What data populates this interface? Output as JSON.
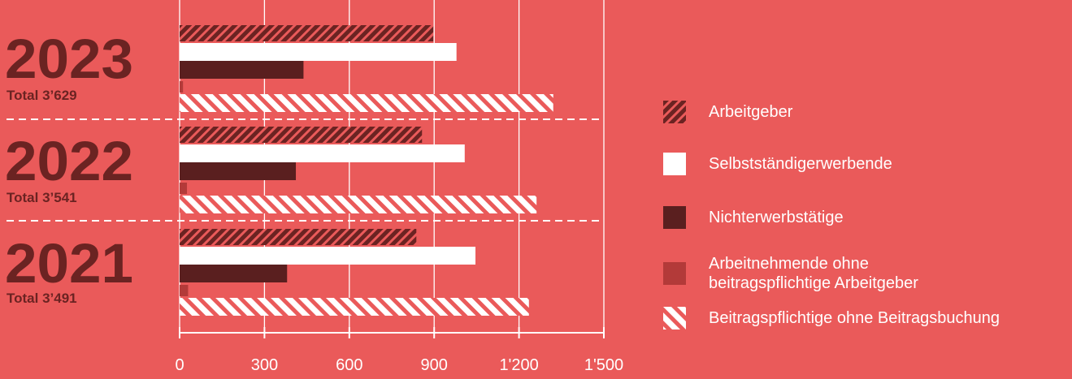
{
  "chart_data": {
    "type": "bar",
    "orientation": "horizontal",
    "xlim": [
      0,
      1500
    ],
    "x_ticks": [
      "0",
      "300",
      "600",
      "900",
      "1'200",
      "1'500"
    ],
    "grid": true,
    "legend_position": "right",
    "groups": [
      {
        "year": "2023",
        "total_label": "Total 3’629"
      },
      {
        "year": "2022",
        "total_label": "Total 3’541"
      },
      {
        "year": "2021",
        "total_label": "Total 3’491"
      }
    ],
    "categories": [
      "2023",
      "2022",
      "2021"
    ],
    "series": [
      {
        "name": "Arbeitgeber",
        "values": [
          897,
          857,
          837
        ],
        "style": "hatch-dark"
      },
      {
        "name": "Selbstständigerwerbende",
        "values": [
          979,
          1008,
          1046
        ],
        "style": "solid-white"
      },
      {
        "name": "Nichterwerbstätige",
        "values": [
          438,
          411,
          380
        ],
        "style": "solid-dark"
      },
      {
        "name": "Arbeitnehmende ohne beitragspflichtige Arbeitgeber",
        "values": [
          12,
          26,
          30
        ],
        "style": "solid-medium"
      },
      {
        "name": "Beitragspflichtige ohne Beitragsbuchung",
        "values": [
          1321,
          1262,
          1235
        ],
        "style": "hatch-white"
      }
    ]
  },
  "colors": {
    "background": "#ea5a5a",
    "dark": "#6b2322",
    "darker": "#5a1f1f",
    "medium": "#b33a39",
    "white": "#ffffff",
    "year_text": "#6b2322"
  }
}
